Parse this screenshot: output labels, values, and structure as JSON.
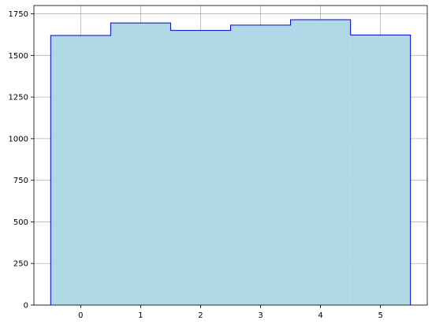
{
  "chart_data": {
    "type": "bar",
    "subtype": "histogram-step-filled",
    "title": "",
    "xlabel": "",
    "ylabel": "",
    "categories": [
      "0",
      "1",
      "2",
      "3",
      "4",
      "5"
    ],
    "x": [
      0,
      1,
      2,
      3,
      4,
      5
    ],
    "values": [
      1620,
      1695,
      1650,
      1682,
      1715,
      1623
    ],
    "bin_edges": [
      -0.5,
      0.5,
      1.5,
      2.5,
      3.5,
      4.5,
      5.5
    ],
    "xlim": [
      -0.78,
      5.78
    ],
    "ylim": [
      0,
      1800
    ],
    "x_ticks": [
      {
        "value": 0,
        "label": "0"
      },
      {
        "value": 1,
        "label": "1"
      },
      {
        "value": 2,
        "label": "2"
      },
      {
        "value": 3,
        "label": "3"
      },
      {
        "value": 4,
        "label": "4"
      },
      {
        "value": 5,
        "label": "5"
      }
    ],
    "y_ticks": [
      {
        "value": 0,
        "label": "0"
      },
      {
        "value": 250,
        "label": "250"
      },
      {
        "value": 500,
        "label": "500"
      },
      {
        "value": 750,
        "label": "750"
      },
      {
        "value": 1000,
        "label": "1000"
      },
      {
        "value": 1250,
        "label": "1250"
      },
      {
        "value": 1500,
        "label": "1500"
      },
      {
        "value": 1750,
        "label": "1750"
      }
    ],
    "grid": true,
    "legend": "none",
    "colors": {
      "fill": "#add8e6",
      "edge": "#0000cd",
      "grid": "#b0b0b0",
      "axis": "#000000"
    }
  }
}
